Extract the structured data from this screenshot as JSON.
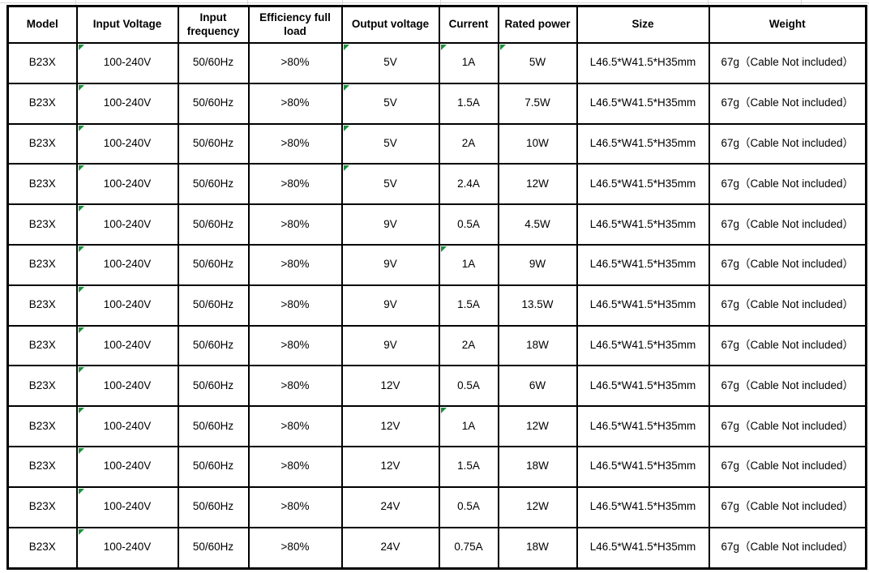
{
  "table": {
    "headers": [
      "Model",
      "Input Voltage",
      "Input frequency",
      "Efficiency full load",
      "Output voltage",
      "Current",
      "Rated power",
      "Size",
      "Weight"
    ],
    "rows": [
      [
        "B23X",
        "100-240V",
        "50/60Hz",
        ">80%",
        "5V",
        "1A",
        "5W",
        "L46.5*W41.5*H35mm",
        "67g（Cable Not included）"
      ],
      [
        "B23X",
        "100-240V",
        "50/60Hz",
        ">80%",
        "5V",
        "1.5A",
        "7.5W",
        "L46.5*W41.5*H35mm",
        "67g（Cable Not included）"
      ],
      [
        "B23X",
        "100-240V",
        "50/60Hz",
        ">80%",
        "5V",
        "2A",
        "10W",
        "L46.5*W41.5*H35mm",
        "67g（Cable Not included）"
      ],
      [
        "B23X",
        "100-240V",
        "50/60Hz",
        ">80%",
        "5V",
        "2.4A",
        "12W",
        "L46.5*W41.5*H35mm",
        "67g（Cable Not included）"
      ],
      [
        "B23X",
        "100-240V",
        "50/60Hz",
        ">80%",
        "9V",
        "0.5A",
        "4.5W",
        "L46.5*W41.5*H35mm",
        "67g（Cable Not included）"
      ],
      [
        "B23X",
        "100-240V",
        "50/60Hz",
        ">80%",
        "9V",
        "1A",
        "9W",
        "L46.5*W41.5*H35mm",
        "67g（Cable Not included）"
      ],
      [
        "B23X",
        "100-240V",
        "50/60Hz",
        ">80%",
        "9V",
        "1.5A",
        "13.5W",
        "L46.5*W41.5*H35mm",
        "67g（Cable Not included）"
      ],
      [
        "B23X",
        "100-240V",
        "50/60Hz",
        ">80%",
        "9V",
        "2A",
        "18W",
        "L46.5*W41.5*H35mm",
        "67g（Cable Not included）"
      ],
      [
        "B23X",
        "100-240V",
        "50/60Hz",
        ">80%",
        "12V",
        "0.5A",
        "6W",
        "L46.5*W41.5*H35mm",
        "67g（Cable Not included）"
      ],
      [
        "B23X",
        "100-240V",
        "50/60Hz",
        ">80%",
        "12V",
        "1A",
        "12W",
        "L46.5*W41.5*H35mm",
        "67g（Cable Not included）"
      ],
      [
        "B23X",
        "100-240V",
        "50/60Hz",
        ">80%",
        "12V",
        "1.5A",
        "18W",
        "L46.5*W41.5*H35mm",
        "67g（Cable Not included）"
      ],
      [
        "B23X",
        "100-240V",
        "50/60Hz",
        ">80%",
        "24V",
        "0.5A",
        "12W",
        "L46.5*W41.5*H35mm",
        "67g（Cable Not included）"
      ],
      [
        "B23X",
        "100-240V",
        "50/60Hz",
        ">80%",
        "24V",
        "0.75A",
        "18W",
        "L46.5*W41.5*H35mm",
        "67g（Cable Not included）"
      ]
    ],
    "error_marker_cells": [
      [
        0,
        1
      ],
      [
        1,
        1
      ],
      [
        2,
        1
      ],
      [
        3,
        1
      ],
      [
        4,
        1
      ],
      [
        5,
        1
      ],
      [
        6,
        1
      ],
      [
        7,
        1
      ],
      [
        8,
        1
      ],
      [
        9,
        1
      ],
      [
        10,
        1
      ],
      [
        11,
        1
      ],
      [
        12,
        1
      ],
      [
        0,
        4
      ],
      [
        1,
        4
      ],
      [
        2,
        4
      ],
      [
        3,
        4
      ],
      [
        0,
        5
      ],
      [
        5,
        5
      ],
      [
        9,
        5
      ],
      [
        0,
        6
      ]
    ]
  },
  "colors": {
    "border": "#000000",
    "error_marker": "#1e8e3e",
    "gridline": "#d8d8d8",
    "text": "#000000"
  }
}
